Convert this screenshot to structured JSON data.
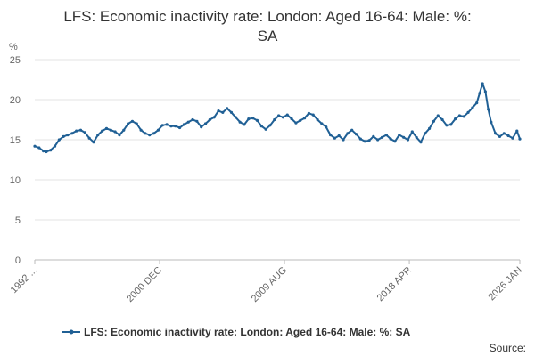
{
  "chart_data": {
    "type": "line",
    "title_lines": [
      "LFS: Economic inactivity rate: London: Aged 16-64: Male: %:",
      "SA"
    ],
    "ylabel": "%",
    "xlabel": "",
    "ylim": [
      0,
      25
    ],
    "yticks": [
      0,
      5,
      10,
      15,
      20,
      25
    ],
    "xlim": [
      1992.2,
      2026.0
    ],
    "xticks": [
      {
        "value": 1992.2,
        "label": "1992 ..."
      },
      {
        "value": 2000.9,
        "label": "2000 DEC"
      },
      {
        "value": 2009.6,
        "label": "2009 AUG"
      },
      {
        "value": 2018.3,
        "label": "2018 APR"
      },
      {
        "value": 2026.0,
        "label": "2026 JAN"
      }
    ],
    "grid": true,
    "legend_position": "bottom",
    "series": [
      {
        "name": "LFS: Economic inactivity rate: London: Aged 16-64: Male: %: SA",
        "color": "#206095",
        "x": [
          1992.2,
          1992.5,
          1992.8,
          1993.0,
          1993.3,
          1993.6,
          1993.9,
          1994.2,
          1994.5,
          1994.8,
          1995.1,
          1995.4,
          1995.7,
          1996.0,
          1996.3,
          1996.6,
          1996.9,
          1997.2,
          1997.5,
          1997.8,
          1998.1,
          1998.4,
          1998.7,
          1999.0,
          1999.3,
          1999.6,
          1999.9,
          2000.2,
          2000.5,
          2000.8,
          2001.1,
          2001.4,
          2001.7,
          2002.0,
          2002.3,
          2002.6,
          2002.9,
          2003.2,
          2003.5,
          2003.8,
          2004.1,
          2004.4,
          2004.7,
          2005.0,
          2005.3,
          2005.6,
          2005.9,
          2006.2,
          2006.5,
          2006.8,
          2007.1,
          2007.4,
          2007.7,
          2008.0,
          2008.3,
          2008.6,
          2008.9,
          2009.2,
          2009.5,
          2009.8,
          2010.1,
          2010.4,
          2010.7,
          2011.0,
          2011.3,
          2011.6,
          2011.9,
          2012.2,
          2012.5,
          2012.8,
          2013.1,
          2013.4,
          2013.7,
          2014.0,
          2014.3,
          2014.6,
          2014.9,
          2015.2,
          2015.5,
          2015.8,
          2016.1,
          2016.4,
          2016.7,
          2017.0,
          2017.3,
          2017.6,
          2017.9,
          2018.2,
          2018.5,
          2018.8,
          2019.1,
          2019.4,
          2019.7,
          2020.0,
          2020.3,
          2020.6,
          2020.9,
          2021.2,
          2021.5,
          2021.8,
          2022.1,
          2022.4,
          2022.7,
          2023.0,
          2023.2,
          2023.4,
          2023.6,
          2023.8,
          2024.0,
          2024.3,
          2024.6,
          2024.9,
          2025.2,
          2025.5,
          2025.8,
          2026.0
        ],
        "values": [
          14.2,
          14.0,
          13.6,
          13.5,
          13.7,
          14.2,
          15.0,
          15.4,
          15.6,
          15.8,
          16.1,
          16.2,
          15.9,
          15.2,
          14.7,
          15.6,
          16.1,
          16.4,
          16.2,
          16.0,
          15.6,
          16.2,
          17.0,
          17.3,
          17.0,
          16.2,
          15.8,
          15.6,
          15.8,
          16.2,
          16.8,
          16.9,
          16.7,
          16.7,
          16.5,
          16.9,
          17.2,
          17.5,
          17.3,
          16.6,
          17.0,
          17.5,
          17.8,
          18.6,
          18.4,
          18.9,
          18.4,
          17.8,
          17.2,
          16.9,
          17.6,
          17.7,
          17.4,
          16.7,
          16.3,
          16.8,
          17.5,
          18.0,
          17.8,
          18.1,
          17.6,
          17.1,
          17.4,
          17.7,
          18.3,
          18.1,
          17.5,
          17.0,
          16.6,
          15.6,
          15.2,
          15.5,
          15.0,
          15.8,
          16.2,
          15.7,
          15.1,
          14.8,
          14.9,
          15.4,
          15.0,
          15.3,
          15.6,
          15.1,
          14.8,
          15.6,
          15.3,
          15.0,
          16.0,
          15.3,
          14.7,
          15.8,
          16.4,
          17.3,
          18.0,
          17.5,
          16.8,
          16.9,
          17.6,
          18.0,
          17.9,
          18.4,
          19.0,
          19.6,
          20.8,
          22.0,
          21.0,
          18.8,
          17.2,
          15.8,
          15.4,
          15.8,
          15.5,
          15.2,
          16.1,
          15.1
        ]
      }
    ]
  },
  "source_label": "Source:"
}
